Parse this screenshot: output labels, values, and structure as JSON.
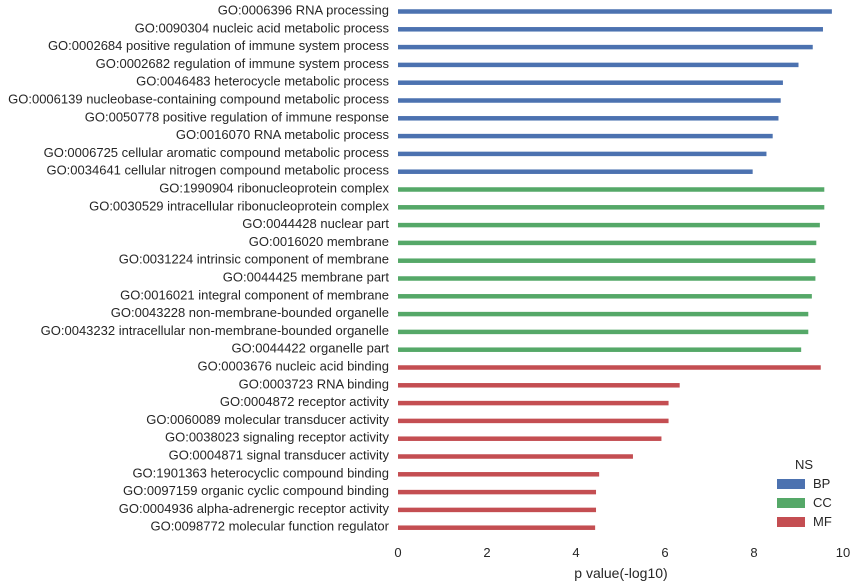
{
  "chart_data": {
    "type": "bar",
    "orientation": "horizontal",
    "xlabel": "p value(-log10)",
    "xlim": [
      0,
      10
    ],
    "xticks": [
      0,
      2,
      4,
      6,
      8,
      10
    ],
    "grid": false,
    "legend": {
      "title": "NS",
      "placement": "bottom-right",
      "entries": [
        {
          "name": "BP",
          "color": "#4c72b0"
        },
        {
          "name": "CC",
          "color": "#55a868"
        },
        {
          "name": "MF",
          "color": "#c44e52"
        }
      ]
    },
    "bars": [
      {
        "label": "GO:0006396 RNA processing",
        "value": 9.75,
        "ns": "BP"
      },
      {
        "label": "GO:0090304 nucleic acid metabolic process",
        "value": 9.55,
        "ns": "BP"
      },
      {
        "label": "GO:0002684 positive regulation of immune system process",
        "value": 9.32,
        "ns": "BP"
      },
      {
        "label": "GO:0002682 regulation of immune system process",
        "value": 9.0,
        "ns": "BP"
      },
      {
        "label": "GO:0046483 heterocycle metabolic process",
        "value": 8.65,
        "ns": "BP"
      },
      {
        "label": "GO:0006139 nucleobase-containing compound metabolic process",
        "value": 8.6,
        "ns": "BP"
      },
      {
        "label": "GO:0050778 positive regulation of immune response",
        "value": 8.55,
        "ns": "BP"
      },
      {
        "label": "GO:0016070 RNA metabolic process",
        "value": 8.42,
        "ns": "BP"
      },
      {
        "label": "GO:0006725 cellular aromatic compound metabolic process",
        "value": 8.28,
        "ns": "BP"
      },
      {
        "label": "GO:0034641 cellular nitrogen compound metabolic process",
        "value": 7.97,
        "ns": "BP"
      },
      {
        "label": "GO:1990904 ribonucleoprotein complex",
        "value": 9.58,
        "ns": "CC"
      },
      {
        "label": "GO:0030529 intracellular ribonucleoprotein complex",
        "value": 9.58,
        "ns": "CC"
      },
      {
        "label": "GO:0044428 nuclear part",
        "value": 9.48,
        "ns": "CC"
      },
      {
        "label": "GO:0016020 membrane",
        "value": 9.4,
        "ns": "CC"
      },
      {
        "label": "GO:0031224 intrinsic component of membrane",
        "value": 9.38,
        "ns": "CC"
      },
      {
        "label": "GO:0044425 membrane part",
        "value": 9.38,
        "ns": "CC"
      },
      {
        "label": "GO:0016021 integral component of membrane",
        "value": 9.3,
        "ns": "CC"
      },
      {
        "label": "GO:0043228 non-membrane-bounded organelle",
        "value": 9.22,
        "ns": "CC"
      },
      {
        "label": "GO:0043232 intracellular non-membrane-bounded organelle",
        "value": 9.22,
        "ns": "CC"
      },
      {
        "label": "GO:0044422 organelle part",
        "value": 9.06,
        "ns": "CC"
      },
      {
        "label": "GO:0003676 nucleic acid binding",
        "value": 9.5,
        "ns": "MF"
      },
      {
        "label": "GO:0003723 RNA binding",
        "value": 6.33,
        "ns": "MF"
      },
      {
        "label": "GO:0004872 receptor activity",
        "value": 6.08,
        "ns": "MF"
      },
      {
        "label": "GO:0060089 molecular transducer activity",
        "value": 6.08,
        "ns": "MF"
      },
      {
        "label": "GO:0038023 signaling receptor activity",
        "value": 5.92,
        "ns": "MF"
      },
      {
        "label": "GO:0004871 signal transducer activity",
        "value": 5.28,
        "ns": "MF"
      },
      {
        "label": "GO:1901363 heterocyclic compound binding",
        "value": 4.52,
        "ns": "MF"
      },
      {
        "label": "GO:0097159 organic cyclic compound binding",
        "value": 4.45,
        "ns": "MF"
      },
      {
        "label": "GO:0004936 alpha-adrenergic receptor activity",
        "value": 4.45,
        "ns": "MF"
      },
      {
        "label": "GO:0098772 molecular function regulator",
        "value": 4.43,
        "ns": "MF"
      }
    ]
  }
}
